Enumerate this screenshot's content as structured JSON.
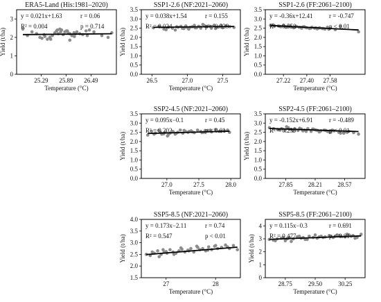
{
  "chart_data": [
    {
      "type": "scatter",
      "title": "ERA5-Land (His:1981–2020)",
      "xlabel": "Temperature (°C)",
      "ylabel": "Yield (t/ha)",
      "xlim": [
        24.7,
        27.1
      ],
      "ylim": [
        0,
        3.5
      ],
      "xticks": [
        "25.29",
        "25.89",
        "26.49"
      ],
      "yticks": [
        "0",
        "1",
        "2",
        "3"
      ],
      "stats": [
        "y = 0.021x+1.63",
        "r = 0.06",
        "R² = 0.004",
        "p = 0.714"
      ],
      "trend": {
        "slope": 0.021,
        "intercept": 1.63
      },
      "x": [
        24.85,
        24.96,
        25.07,
        25.18,
        25.26,
        25.31,
        25.38,
        25.44,
        25.5,
        25.56,
        25.62,
        25.66,
        25.7,
        25.74,
        25.78,
        25.82,
        25.86,
        25.9,
        25.94,
        25.98,
        26.03,
        26.09,
        26.15,
        26.22,
        26.29,
        26.37,
        26.45,
        26.56,
        26.75,
        26.9,
        26.99,
        25.98,
        25.52,
        25.92,
        26.12,
        25.76,
        25.36,
        25.68,
        26.08,
        26.4
      ],
      "y": [
        2.45,
        2.1,
        2.3,
        2.2,
        2.0,
        1.95,
        2.05,
        1.9,
        2.0,
        2.1,
        2.25,
        2.35,
        2.2,
        2.45,
        2.4,
        2.15,
        2.3,
        2.35,
        2.25,
        2.2,
        2.1,
        2.05,
        2.3,
        2.2,
        2.15,
        2.35,
        2.4,
        2.3,
        2.1,
        2.0,
        2.25,
        1.85,
        1.9,
        2.35,
        2.2,
        2.3,
        2.15,
        2.4,
        2.25,
        2.1
      ]
    },
    {
      "type": "scatter",
      "title": "SSP1-2.6 (NF:2021–2060)",
      "xlabel": "Temperature (°C)",
      "ylabel": "Yield (t/ha)",
      "xlim": [
        26.35,
        27.75
      ],
      "ylim": [
        0,
        3.5
      ],
      "xticks": [
        "26.5",
        "27.0",
        "27.5"
      ],
      "yticks": [
        "0.0",
        "0.5",
        "1.0",
        "1.5",
        "2.0",
        "2.5",
        "3.0",
        "3.5"
      ],
      "stats": [
        "y = 0.038x+1.54",
        "r = 0.155",
        "R² = 0.024",
        "p = 0.339"
      ],
      "trend": {
        "slope": 0.038,
        "intercept": 1.54
      },
      "x": [
        26.52,
        26.6,
        26.67,
        26.74,
        26.79,
        26.83,
        26.87,
        26.91,
        26.95,
        26.98,
        27.01,
        27.04,
        27.07,
        27.1,
        27.13,
        27.16,
        27.19,
        27.22,
        27.26,
        27.3,
        27.34,
        27.38,
        27.42,
        27.46,
        27.5,
        27.55,
        27.6,
        27.66,
        26.7,
        26.93,
        27.24,
        27.4,
        26.85,
        27.11,
        27.32,
        27.02,
        27.19,
        26.97,
        27.48,
        27.28
      ],
      "y": [
        2.52,
        2.6,
        2.45,
        2.55,
        2.5,
        2.4,
        2.55,
        2.6,
        2.48,
        2.62,
        2.5,
        2.55,
        2.58,
        2.65,
        2.52,
        2.6,
        2.55,
        2.7,
        2.58,
        2.62,
        2.5,
        2.66,
        2.55,
        2.6,
        2.52,
        2.62,
        2.58,
        2.54,
        2.42,
        2.5,
        2.64,
        2.48,
        2.58,
        2.52,
        2.6,
        2.45,
        2.5,
        2.56,
        2.65,
        2.6
      ]
    },
    {
      "type": "scatter",
      "title": "SSP1-2.6 (FF:2061–2100)",
      "xlabel": "Temperature (°C)",
      "ylabel": "Yield (t/ha)",
      "xlim": [
        27.08,
        27.85
      ],
      "ylim": [
        0,
        3.5
      ],
      "xticks": [
        "27.22",
        "27.40",
        "27.58"
      ],
      "yticks": [
        "0.0",
        "0.5",
        "1.0",
        "1.5",
        "2.0",
        "2.5",
        "3.0",
        "3.5"
      ],
      "stats": [
        "y = -0.36x+12.41",
        "r = -0.747",
        "R² = 0.558",
        "p < 0.01"
      ],
      "trend": {
        "slope": -0.36,
        "intercept": 12.41
      },
      "x": [
        27.12,
        27.15,
        27.18,
        27.2,
        27.22,
        27.24,
        27.26,
        27.28,
        27.3,
        27.32,
        27.34,
        27.36,
        27.38,
        27.4,
        27.42,
        27.44,
        27.46,
        27.48,
        27.5,
        27.52,
        27.54,
        27.56,
        27.58,
        27.62,
        27.66,
        27.8,
        27.19,
        27.27,
        27.35,
        27.43,
        27.53,
        27.23,
        27.31,
        27.39,
        27.47,
        27.57,
        27.14,
        27.25,
        27.37,
        27.49
      ],
      "y": [
        2.65,
        2.6,
        2.62,
        2.58,
        2.66,
        2.55,
        2.6,
        2.57,
        2.52,
        2.6,
        2.55,
        2.5,
        2.58,
        2.52,
        2.48,
        2.55,
        2.5,
        2.46,
        2.52,
        2.48,
        2.45,
        2.55,
        2.5,
        2.42,
        2.6,
        2.3,
        2.6,
        2.62,
        2.55,
        2.5,
        2.48,
        2.6,
        2.56,
        2.54,
        2.52,
        2.44,
        2.68,
        2.58,
        2.57,
        2.5
      ]
    },
    {
      "type": "scatter",
      "title": "SSP2-4.5 (NF:2021–2060)",
      "xlabel": "Temperature (°C)",
      "ylabel": "Yield (t/ha)",
      "xlim": [
        26.6,
        28.15
      ],
      "ylim": [
        0,
        3.5
      ],
      "xticks": [
        "27.0",
        "27.5",
        "28.0"
      ],
      "yticks": [
        "0.0",
        "0.5",
        "1.0",
        "1.5",
        "2.0",
        "2.5",
        "3.0",
        "3.5"
      ],
      "stats": [
        "y = 0.095x−0.1",
        "r = 0.45",
        "R² = 0.202",
        "p < 0.01"
      ],
      "trend": {
        "slope": 0.095,
        "intercept": -0.1
      },
      "x": [
        26.7,
        26.76,
        26.82,
        26.87,
        26.92,
        26.97,
        27.01,
        27.05,
        27.09,
        27.13,
        27.17,
        27.21,
        27.25,
        27.29,
        27.33,
        27.38,
        27.43,
        27.48,
        27.53,
        27.58,
        27.64,
        27.7,
        27.76,
        27.82,
        27.9,
        27.98,
        26.8,
        26.9,
        27.02,
        27.15,
        27.27,
        27.4,
        27.55,
        27.68,
        27.85,
        26.95,
        27.1,
        27.35,
        27.6,
        27.95
      ],
      "y": [
        2.35,
        2.55,
        2.45,
        2.6,
        2.4,
        2.5,
        2.3,
        2.45,
        2.55,
        2.4,
        2.5,
        2.62,
        2.45,
        2.55,
        2.5,
        2.58,
        2.48,
        2.62,
        2.55,
        2.5,
        2.6,
        2.52,
        2.65,
        2.55,
        2.58,
        2.5,
        2.4,
        2.5,
        2.35,
        2.45,
        2.6,
        2.52,
        2.48,
        2.62,
        2.55,
        2.42,
        2.52,
        2.55,
        2.6,
        2.62
      ]
    },
    {
      "type": "scatter",
      "title": "SSP2-4.5 (FF:2061–2100)",
      "xlabel": "Temperature (°C)",
      "ylabel": "Yield (t/ha)",
      "xlim": [
        27.6,
        28.82
      ],
      "ylim": [
        0,
        3.5
      ],
      "xticks": [
        "27.85",
        "28.21",
        "28.57"
      ],
      "yticks": [
        "0.0",
        "0.5",
        "1.0",
        "1.5",
        "2.0",
        "2.5",
        "3.0",
        "3.5"
      ],
      "stats": [
        "y = -0.152x+6.91",
        "r = -0.489",
        "R² = 0.239",
        "p < 0.01"
      ],
      "trend": {
        "slope": -0.152,
        "intercept": 6.91
      },
      "x": [
        27.65,
        27.7,
        27.75,
        27.8,
        27.84,
        27.88,
        27.92,
        27.96,
        28.0,
        28.04,
        28.08,
        28.12,
        28.16,
        28.2,
        28.24,
        28.28,
        28.32,
        28.36,
        28.4,
        28.44,
        28.5,
        28.56,
        28.62,
        28.68,
        28.74,
        27.78,
        27.86,
        27.94,
        28.02,
        28.1,
        28.18,
        28.26,
        28.34,
        28.42,
        28.52,
        27.9,
        28.06,
        28.22,
        28.38,
        28.6
      ],
      "y": [
        2.75,
        2.7,
        2.65,
        2.7,
        2.6,
        2.75,
        2.65,
        2.7,
        2.6,
        2.68,
        2.62,
        2.7,
        2.55,
        2.65,
        2.6,
        2.58,
        2.62,
        2.55,
        2.5,
        2.58,
        2.5,
        2.45,
        2.55,
        2.48,
        2.4,
        2.62,
        2.8,
        2.58,
        2.72,
        2.55,
        2.68,
        2.52,
        2.6,
        2.62,
        2.45,
        2.66,
        2.58,
        2.62,
        2.52,
        2.5
      ]
    },
    {
      "type": "scatter",
      "title": "SSP5-8.5 (NF:2021–2060)",
      "xlabel": "Temperature (°C)",
      "ylabel": "Yield (t/ha)",
      "xlim": [
        26.5,
        28.5
      ],
      "ylim": [
        1.5,
        4.0
      ],
      "xticks": [
        "27",
        "28"
      ],
      "yticks": [
        "1.5",
        "2.0",
        "2.5",
        "3.0",
        "3.5",
        "4.0"
      ],
      "stats": [
        "y = 0.173x−2.11",
        "r = 0.74",
        "R² = 0.547",
        "p < 0.01"
      ],
      "trend": {
        "slope": 0.173,
        "intercept": -2.11
      },
      "x": [
        26.6,
        26.68,
        26.76,
        26.83,
        26.9,
        26.96,
        27.02,
        27.08,
        27.14,
        27.2,
        27.26,
        27.32,
        27.38,
        27.44,
        27.5,
        27.56,
        27.62,
        27.68,
        27.74,
        27.8,
        27.86,
        27.92,
        27.98,
        28.04,
        28.12,
        28.2,
        28.28,
        28.36,
        28.44,
        26.72,
        26.86,
        27.0,
        27.16,
        27.3,
        27.46,
        27.64,
        27.84,
        28.0,
        28.24,
        26.94
      ],
      "y": [
        2.5,
        2.45,
        2.55,
        2.65,
        2.5,
        2.6,
        2.55,
        2.7,
        2.6,
        2.55,
        2.65,
        2.72,
        2.6,
        2.68,
        2.75,
        2.6,
        2.85,
        2.7,
        2.75,
        2.65,
        2.82,
        2.7,
        2.85,
        2.75,
        2.8,
        2.9,
        2.75,
        2.88,
        2.7,
        2.6,
        2.4,
        2.62,
        2.5,
        2.78,
        2.65,
        2.8,
        2.68,
        2.88,
        2.82,
        2.7
      ]
    },
    {
      "type": "scatter",
      "title": "SSP5-8.5 (FF:2061–2100)",
      "xlabel": "Temperature (°C)",
      "ylabel": "Yield (t/ha)",
      "xlim": [
        28.25,
        30.75
      ],
      "ylim": [
        0,
        4.5
      ],
      "xticks": [
        "28.75",
        "29.50",
        "30.25"
      ],
      "yticks": [
        "0",
        "1",
        "2",
        "3",
        "4"
      ],
      "stats": [
        "y = 0.115x−0.3",
        "r = 0.691",
        "R² = 0.477",
        "p < 0.01"
      ],
      "trend": {
        "slope": 0.115,
        "intercept": -0.3
      },
      "x": [
        28.35,
        28.45,
        28.55,
        28.65,
        28.75,
        28.85,
        28.95,
        29.05,
        29.15,
        29.25,
        29.35,
        29.45,
        29.55,
        29.65,
        29.75,
        29.85,
        29.95,
        30.05,
        30.15,
        30.25,
        30.35,
        30.45,
        30.55,
        30.65,
        28.5,
        28.7,
        28.9,
        29.1,
        29.3,
        29.5,
        29.7,
        29.9,
        30.1,
        30.3,
        30.5,
        28.8,
        29.2,
        29.6,
        30.0,
        30.4
      ],
      "y": [
        2.95,
        2.9,
        3.0,
        3.05,
        2.85,
        3.1,
        3.0,
        3.15,
        3.05,
        2.95,
        3.2,
        3.1,
        3.05,
        3.2,
        3.15,
        3.25,
        3.1,
        3.3,
        3.2,
        3.15,
        3.3,
        3.25,
        3.1,
        3.35,
        2.85,
        3.1,
        2.8,
        3.2,
        2.95,
        3.3,
        3.1,
        3.2,
        3.25,
        3.35,
        3.05,
        3.0,
        3.1,
        3.15,
        3.2,
        3.2
      ]
    }
  ]
}
